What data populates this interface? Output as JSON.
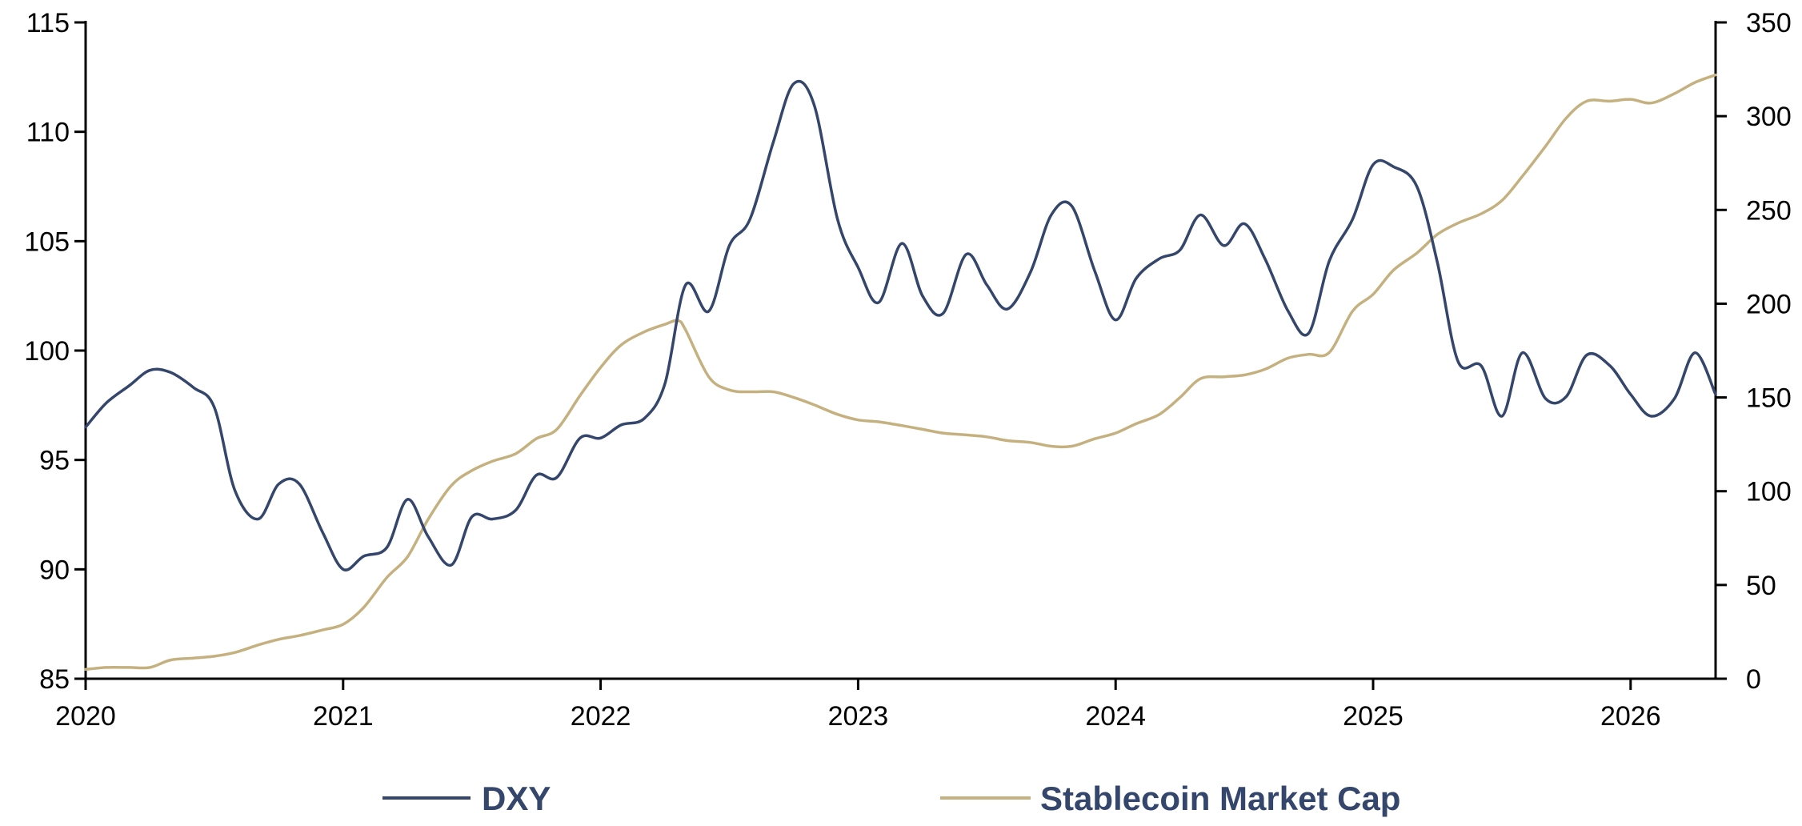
{
  "chart_data": {
    "type": "line",
    "title": "",
    "xlabel": "",
    "ylabel_left": "",
    "ylabel_right": "",
    "x_ticks": [
      "2020",
      "2021",
      "2022",
      "2023",
      "2024",
      "2025",
      "2026"
    ],
    "x_range": [
      2020.0,
      2026.33
    ],
    "y_left": {
      "range": [
        85,
        115
      ],
      "ticks": [
        "85",
        "90",
        "95",
        "100",
        "105",
        "110",
        "115"
      ]
    },
    "y_right": {
      "range": [
        0,
        350
      ],
      "ticks": [
        "0",
        "50",
        "100",
        "150",
        "200",
        "250",
        "300",
        "350"
      ]
    },
    "grid": false,
    "legend_position": "bottom",
    "series": [
      {
        "name": "DXY",
        "axis": "left",
        "color": "#34466b",
        "points": [
          [
            2020.0,
            96.5
          ],
          [
            2020.08,
            97.6
          ],
          [
            2020.17,
            98.4
          ],
          [
            2020.25,
            99.1
          ],
          [
            2020.33,
            99.0
          ],
          [
            2020.42,
            98.3
          ],
          [
            2020.5,
            97.4
          ],
          [
            2020.58,
            93.6
          ],
          [
            2020.67,
            92.3
          ],
          [
            2020.75,
            93.9
          ],
          [
            2020.83,
            93.9
          ],
          [
            2020.92,
            91.7
          ],
          [
            2021.0,
            90.0
          ],
          [
            2021.08,
            90.6
          ],
          [
            2021.17,
            91.0
          ],
          [
            2021.25,
            93.2
          ],
          [
            2021.33,
            91.5
          ],
          [
            2021.42,
            90.2
          ],
          [
            2021.5,
            92.4
          ],
          [
            2021.58,
            92.3
          ],
          [
            2021.67,
            92.7
          ],
          [
            2021.75,
            94.3
          ],
          [
            2021.83,
            94.2
          ],
          [
            2021.92,
            96.0
          ],
          [
            2022.0,
            96.0
          ],
          [
            2022.08,
            96.6
          ],
          [
            2022.17,
            96.9
          ],
          [
            2022.25,
            98.5
          ],
          [
            2022.33,
            103.0
          ],
          [
            2022.42,
            101.8
          ],
          [
            2022.5,
            104.8
          ],
          [
            2022.58,
            106.0
          ],
          [
            2022.67,
            109.5
          ],
          [
            2022.75,
            112.2
          ],
          [
            2022.83,
            111.2
          ],
          [
            2022.92,
            106.0
          ],
          [
            2023.0,
            103.8
          ],
          [
            2023.08,
            102.2
          ],
          [
            2023.17,
            104.9
          ],
          [
            2023.25,
            102.5
          ],
          [
            2023.33,
            101.7
          ],
          [
            2023.42,
            104.4
          ],
          [
            2023.5,
            103.0
          ],
          [
            2023.58,
            101.9
          ],
          [
            2023.67,
            103.6
          ],
          [
            2023.75,
            106.2
          ],
          [
            2023.83,
            106.6
          ],
          [
            2023.92,
            103.6
          ],
          [
            2024.0,
            101.4
          ],
          [
            2024.08,
            103.3
          ],
          [
            2024.17,
            104.2
          ],
          [
            2024.25,
            104.6
          ],
          [
            2024.33,
            106.2
          ],
          [
            2024.42,
            104.8
          ],
          [
            2024.5,
            105.8
          ],
          [
            2024.58,
            104.2
          ],
          [
            2024.67,
            101.8
          ],
          [
            2024.75,
            100.8
          ],
          [
            2024.83,
            104.1
          ],
          [
            2024.92,
            106.0
          ],
          [
            2025.0,
            108.5
          ],
          [
            2025.08,
            108.4
          ],
          [
            2025.17,
            107.5
          ],
          [
            2025.25,
            104.0
          ],
          [
            2025.33,
            99.5
          ],
          [
            2025.42,
            99.3
          ],
          [
            2025.5,
            97.0
          ],
          [
            2025.58,
            99.9
          ],
          [
            2025.67,
            97.8
          ],
          [
            2025.75,
            97.9
          ],
          [
            2025.83,
            99.8
          ],
          [
            2025.92,
            99.3
          ],
          [
            2026.0,
            98.0
          ],
          [
            2026.08,
            97.0
          ],
          [
            2026.17,
            97.8
          ],
          [
            2026.25,
            99.9
          ],
          [
            2026.33,
            98.0
          ]
        ]
      },
      {
        "name": "Stablecoin Market Cap",
        "axis": "right",
        "color": "#c5b180",
        "points": [
          [
            2020.0,
            5
          ],
          [
            2020.08,
            6
          ],
          [
            2020.17,
            6
          ],
          [
            2020.25,
            6
          ],
          [
            2020.33,
            10
          ],
          [
            2020.42,
            11
          ],
          [
            2020.5,
            12
          ],
          [
            2020.58,
            14
          ],
          [
            2020.67,
            18
          ],
          [
            2020.75,
            21
          ],
          [
            2020.83,
            23
          ],
          [
            2020.92,
            26
          ],
          [
            2021.0,
            29
          ],
          [
            2021.08,
            38
          ],
          [
            2021.17,
            54
          ],
          [
            2021.25,
            65
          ],
          [
            2021.33,
            85
          ],
          [
            2021.42,
            103
          ],
          [
            2021.5,
            111
          ],
          [
            2021.58,
            116
          ],
          [
            2021.67,
            120
          ],
          [
            2021.75,
            128
          ],
          [
            2021.83,
            133
          ],
          [
            2021.92,
            151
          ],
          [
            2022.0,
            166
          ],
          [
            2022.08,
            178
          ],
          [
            2022.17,
            185
          ],
          [
            2022.25,
            189
          ],
          [
            2022.3,
            191
          ],
          [
            2022.33,
            186
          ],
          [
            2022.42,
            161
          ],
          [
            2022.5,
            154
          ],
          [
            2022.58,
            153
          ],
          [
            2022.67,
            153
          ],
          [
            2022.75,
            150
          ],
          [
            2022.83,
            146
          ],
          [
            2022.92,
            141
          ],
          [
            2023.0,
            138
          ],
          [
            2023.08,
            137
          ],
          [
            2023.17,
            135
          ],
          [
            2023.25,
            133
          ],
          [
            2023.33,
            131
          ],
          [
            2023.42,
            130
          ],
          [
            2023.5,
            129
          ],
          [
            2023.58,
            127
          ],
          [
            2023.67,
            126
          ],
          [
            2023.75,
            124
          ],
          [
            2023.83,
            124
          ],
          [
            2023.92,
            128
          ],
          [
            2024.0,
            131
          ],
          [
            2024.08,
            136
          ],
          [
            2024.17,
            141
          ],
          [
            2024.25,
            150
          ],
          [
            2024.33,
            160
          ],
          [
            2024.42,
            161
          ],
          [
            2024.5,
            162
          ],
          [
            2024.58,
            165
          ],
          [
            2024.67,
            171
          ],
          [
            2024.75,
            173
          ],
          [
            2024.83,
            174
          ],
          [
            2024.92,
            196
          ],
          [
            2025.0,
            205
          ],
          [
            2025.08,
            218
          ],
          [
            2025.17,
            227
          ],
          [
            2025.25,
            237
          ],
          [
            2025.33,
            243
          ],
          [
            2025.42,
            248
          ],
          [
            2025.5,
            255
          ],
          [
            2025.58,
            268
          ],
          [
            2025.67,
            284
          ],
          [
            2025.75,
            299
          ],
          [
            2025.83,
            308
          ],
          [
            2025.92,
            308
          ],
          [
            2026.0,
            309
          ],
          [
            2026.08,
            307
          ],
          [
            2026.17,
            312
          ],
          [
            2026.25,
            318
          ],
          [
            2026.33,
            322
          ]
        ]
      }
    ]
  }
}
